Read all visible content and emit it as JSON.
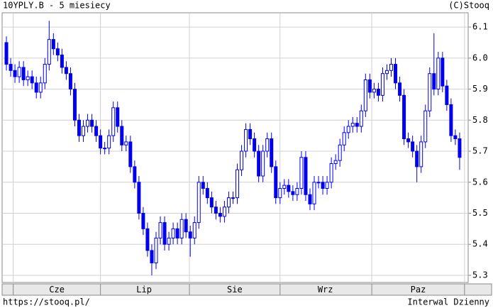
{
  "chart_data": {
    "type": "candlestick",
    "title": "10YPLY.B - 5 miesiecy",
    "source": "(C)Stooq",
    "footer_left": "https://stooq.pl/",
    "footer_right": "Interwal Dzienny",
    "color": "#0000ee",
    "grid": true,
    "xlim": [
      -1,
      108
    ],
    "xticks": [
      {
        "value": 11.8,
        "label": "Cze"
      },
      {
        "value": 32.2,
        "label": "Lip"
      },
      {
        "value": 53.4,
        "label": "Sie"
      },
      {
        "value": 74.6,
        "label": "Wrz"
      },
      {
        "value": 96.3,
        "label": "Paz"
      }
    ],
    "ylim": [
      5.277,
      6.146
    ],
    "yticks": [
      5.3,
      5.4,
      5.5,
      5.6,
      5.7,
      5.8,
      5.9,
      {
        "value": 6,
        "label": "6.0"
      },
      6.1
    ],
    "open": [
      6.05,
      5.98,
      5.96,
      5.94,
      5.97,
      5.93,
      5.94,
      5.92,
      5.89,
      5.92,
      5.98,
      6.06,
      6.03,
      6.01,
      5.97,
      5.95,
      5.9,
      5.8,
      5.75,
      5.78,
      5.8,
      5.78,
      5.75,
      5.71,
      5.71,
      5.75,
      5.84,
      5.78,
      5.72,
      5.73,
      5.65,
      5.6,
      5.5,
      5.45,
      5.38,
      5.34,
      5.42,
      5.47,
      5.4,
      5.42,
      5.45,
      5.42,
      5.48,
      5.44,
      5.42,
      5.47,
      5.6,
      5.58,
      5.55,
      5.52,
      5.5,
      5.49,
      5.52,
      5.55,
      5.55,
      5.64,
      5.7,
      5.77,
      5.74,
      5.7,
      5.62,
      5.7,
      5.74,
      5.65,
      5.55,
      5.58,
      5.59,
      5.57,
      5.56,
      5.58,
      5.68,
      5.56,
      5.53,
      5.6,
      5.6,
      5.58,
      5.6,
      5.66,
      5.67,
      5.72,
      5.76,
      5.78,
      5.79,
      5.78,
      5.83,
      5.93,
      5.89,
      5.9,
      5.88,
      5.95,
      5.96,
      5.98,
      5.92,
      5.88,
      5.74,
      5.73,
      5.7,
      5.65,
      5.73,
      5.83,
      5.95,
      5.9,
      6.0,
      5.91,
      5.85,
      5.75,
      5.74
    ],
    "high": [
      6.07,
      6.0,
      5.98,
      5.99,
      5.99,
      5.96,
      5.96,
      5.94,
      5.94,
      6.0,
      6.12,
      6.08,
      6.05,
      6.03,
      5.99,
      5.97,
      5.92,
      5.82,
      5.8,
      5.82,
      5.82,
      5.8,
      5.77,
      5.73,
      5.77,
      5.86,
      5.86,
      5.8,
      5.75,
      5.75,
      5.67,
      5.62,
      5.52,
      5.47,
      5.4,
      5.44,
      5.49,
      5.49,
      5.44,
      5.47,
      5.47,
      5.5,
      5.5,
      5.46,
      5.49,
      5.62,
      5.62,
      5.6,
      5.57,
      5.54,
      5.52,
      5.54,
      5.57,
      5.57,
      5.66,
      5.72,
      5.79,
      5.79,
      5.76,
      5.72,
      5.72,
      5.76,
      5.76,
      5.67,
      5.6,
      5.61,
      5.61,
      5.59,
      5.6,
      5.7,
      5.7,
      5.58,
      5.62,
      5.62,
      5.62,
      5.62,
      5.68,
      5.69,
      5.74,
      5.78,
      5.8,
      5.81,
      5.81,
      5.85,
      5.95,
      5.95,
      5.92,
      5.92,
      5.97,
      5.98,
      6.0,
      6.0,
      5.94,
      5.9,
      5.76,
      5.75,
      5.72,
      5.75,
      5.85,
      5.97,
      6.08,
      6.02,
      6.02,
      5.93,
      5.87,
      5.77,
      5.76
    ],
    "low": [
      5.96,
      5.94,
      5.92,
      5.92,
      5.91,
      5.91,
      5.9,
      5.87,
      5.87,
      5.9,
      5.96,
      6.01,
      5.99,
      5.95,
      5.93,
      5.88,
      5.78,
      5.73,
      5.73,
      5.76,
      5.76,
      5.73,
      5.69,
      5.69,
      5.69,
      5.73,
      5.76,
      5.7,
      5.7,
      5.63,
      5.58,
      5.48,
      5.43,
      5.36,
      5.3,
      5.32,
      5.4,
      5.38,
      5.38,
      5.4,
      5.4,
      5.4,
      5.42,
      5.36,
      5.4,
      5.45,
      5.56,
      5.53,
      5.5,
      5.48,
      5.47,
      5.47,
      5.5,
      5.53,
      5.53,
      5.62,
      5.68,
      5.72,
      5.68,
      5.6,
      5.6,
      5.68,
      5.63,
      5.53,
      5.53,
      5.56,
      5.55,
      5.54,
      5.54,
      5.56,
      5.54,
      5.51,
      5.51,
      5.58,
      5.56,
      5.56,
      5.58,
      5.64,
      5.65,
      5.7,
      5.74,
      5.76,
      5.76,
      5.76,
      5.81,
      5.87,
      5.87,
      5.86,
      5.86,
      5.93,
      5.94,
      5.9,
      5.86,
      5.72,
      5.71,
      5.68,
      5.6,
      5.63,
      5.71,
      5.81,
      5.88,
      5.88,
      5.89,
      5.83,
      5.73,
      5.72,
      5.64
    ],
    "close": [
      5.98,
      5.96,
      5.94,
      5.97,
      5.93,
      5.94,
      5.92,
      5.89,
      5.92,
      5.98,
      6.06,
      6.03,
      6.01,
      5.97,
      5.95,
      5.9,
      5.8,
      5.75,
      5.78,
      5.8,
      5.78,
      5.75,
      5.71,
      5.71,
      5.75,
      5.84,
      5.78,
      5.72,
      5.73,
      5.65,
      5.6,
      5.5,
      5.45,
      5.38,
      5.34,
      5.42,
      5.47,
      5.4,
      5.42,
      5.45,
      5.42,
      5.48,
      5.44,
      5.42,
      5.47,
      5.6,
      5.58,
      5.55,
      5.52,
      5.5,
      5.49,
      5.52,
      5.55,
      5.55,
      5.64,
      5.7,
      5.77,
      5.74,
      5.7,
      5.62,
      5.7,
      5.74,
      5.65,
      5.55,
      5.58,
      5.59,
      5.57,
      5.56,
      5.58,
      5.68,
      5.56,
      5.53,
      5.6,
      5.6,
      5.58,
      5.6,
      5.66,
      5.67,
      5.72,
      5.76,
      5.78,
      5.79,
      5.78,
      5.83,
      5.93,
      5.89,
      5.9,
      5.88,
      5.95,
      5.96,
      5.98,
      5.92,
      5.88,
      5.74,
      5.73,
      5.7,
      5.65,
      5.73,
      5.83,
      5.95,
      5.9,
      6.0,
      5.91,
      5.85,
      5.75,
      5.74,
      5.68
    ]
  }
}
